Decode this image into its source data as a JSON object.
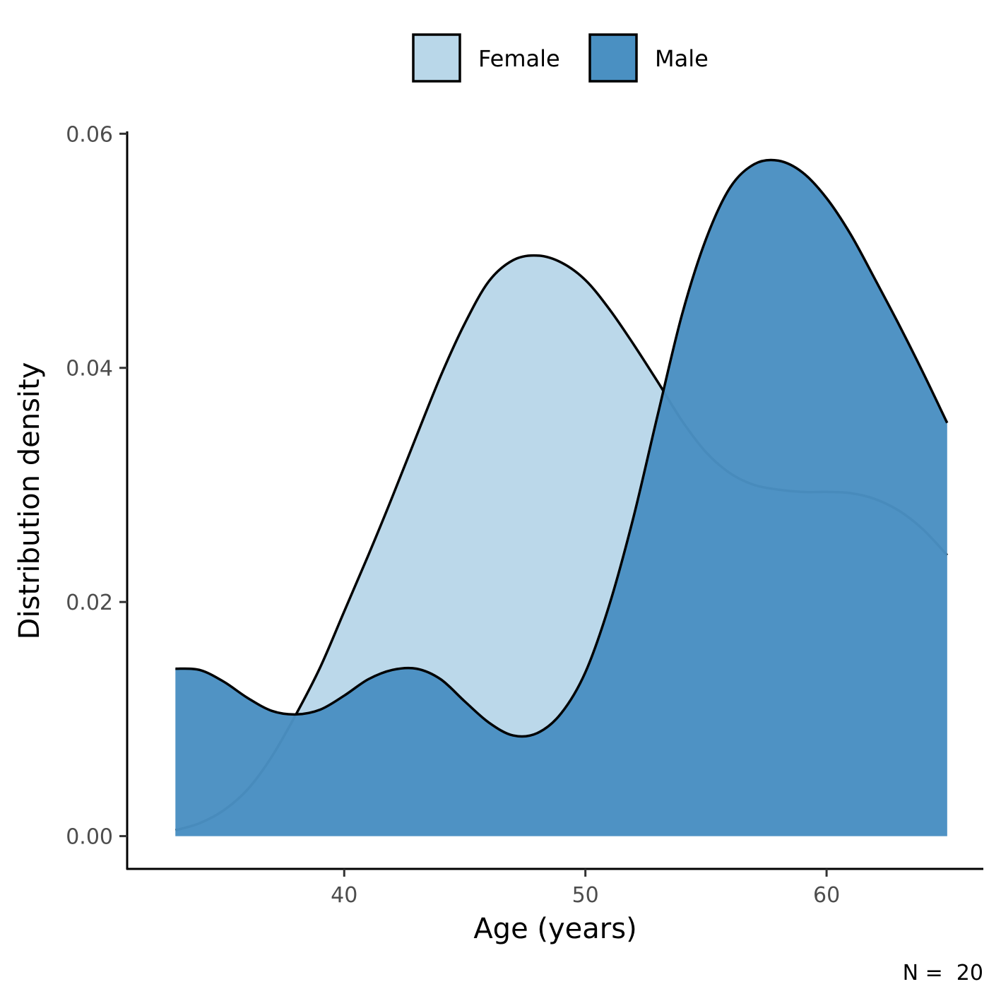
{
  "chart_data": {
    "type": "area",
    "subtype": "density",
    "xlabel": "Age (years)",
    "ylabel": "Distribution density",
    "caption": "N =  20",
    "xlim": [
      31.0,
      66.5
    ],
    "ylim": [
      -0.0028,
      0.0602
    ],
    "x_ticks": [
      40,
      50,
      60
    ],
    "x_tick_labels": [
      "40",
      "50",
      "60"
    ],
    "y_ticks": [
      0.0,
      0.02,
      0.04,
      0.06
    ],
    "y_tick_labels": [
      "0.00",
      "0.02",
      "0.04",
      "0.06"
    ],
    "grid": false,
    "legend_position": "top",
    "series": [
      {
        "name": "Female",
        "color": "#b9d7e9",
        "x": [
          33,
          34,
          35,
          36,
          37,
          38,
          39,
          40,
          41,
          42,
          43,
          44,
          45,
          46,
          47,
          48,
          49,
          50,
          51,
          52,
          53,
          54,
          55,
          56,
          57,
          58,
          59,
          60,
          61,
          62,
          63,
          64,
          65
        ],
        "y": [
          0.0005,
          0.0011,
          0.0022,
          0.004,
          0.0068,
          0.0104,
          0.0144,
          0.0192,
          0.024,
          0.029,
          0.0342,
          0.0393,
          0.0438,
          0.0474,
          0.0492,
          0.0496,
          0.049,
          0.0475,
          0.045,
          0.042,
          0.0388,
          0.0355,
          0.0328,
          0.031,
          0.03,
          0.0296,
          0.0294,
          0.0294,
          0.0293,
          0.0288,
          0.0278,
          0.0262,
          0.024
        ]
      },
      {
        "name": "Male",
        "color": "#4a90c2",
        "x": [
          33,
          34,
          35,
          36,
          37,
          38,
          39,
          40,
          41,
          42,
          43,
          44,
          45,
          46,
          47,
          48,
          49,
          50,
          51,
          52,
          53,
          54,
          55,
          56,
          57,
          58,
          59,
          60,
          61,
          62,
          63,
          64,
          65
        ],
        "y": [
          0.0143,
          0.0142,
          0.0132,
          0.0118,
          0.0107,
          0.0104,
          0.0108,
          0.012,
          0.0134,
          0.0142,
          0.0143,
          0.0134,
          0.0115,
          0.0097,
          0.0086,
          0.0088,
          0.0105,
          0.014,
          0.0198,
          0.0273,
          0.036,
          0.0445,
          0.051,
          0.0554,
          0.0574,
          0.0577,
          0.0567,
          0.0545,
          0.0514,
          0.0476,
          0.0437,
          0.0396,
          0.0353
        ]
      }
    ]
  }
}
